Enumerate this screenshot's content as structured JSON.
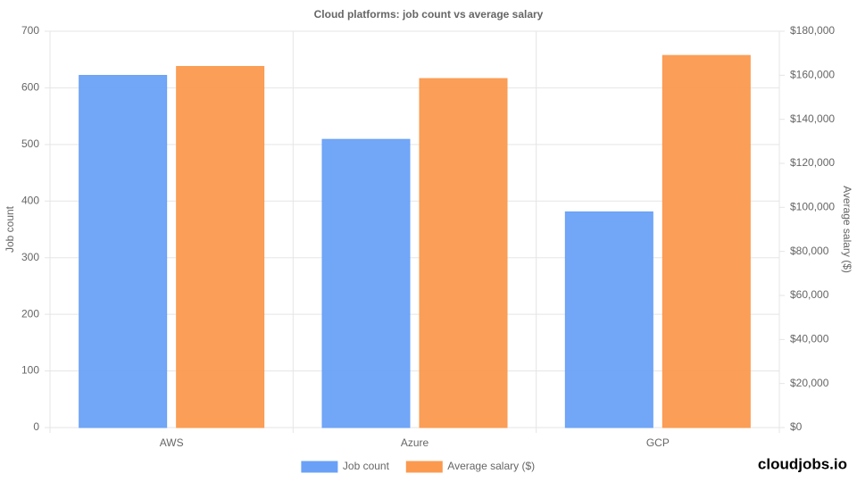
{
  "chart_data": {
    "type": "bar",
    "title": "Cloud platforms: job count vs average salary",
    "categories": [
      "AWS",
      "Azure",
      "GCP"
    ],
    "series": [
      {
        "name": "Job count",
        "color": "#6aa1f7",
        "values": [
          622,
          509,
          381
        ]
      },
      {
        "name": "Average salary ($)",
        "color": "#fb9a4f",
        "axis": "y2",
        "values": [
          164000,
          158500,
          169000
        ]
      }
    ],
    "y_label": "Job count",
    "y2_label": "Average salary ($)",
    "ylim": [
      0,
      700
    ],
    "yticks": [
      0,
      100,
      200,
      300,
      400,
      500,
      600,
      700
    ],
    "y2lim": [
      0,
      180000
    ],
    "y2ticks": [
      {
        "value": 0,
        "label": "$0"
      },
      {
        "value": 20000,
        "label": "$20,000"
      },
      {
        "value": 40000,
        "label": "$40,000"
      },
      {
        "value": 60000,
        "label": "$60,000"
      },
      {
        "value": 80000,
        "label": "$80,000"
      },
      {
        "value": 100000,
        "label": "$100,000"
      },
      {
        "value": 120000,
        "label": "$120,000"
      },
      {
        "value": 140000,
        "label": "$140,000"
      },
      {
        "value": 160000,
        "label": "$160,000"
      },
      {
        "value": 180000,
        "label": "$180,000"
      }
    ],
    "grid": true,
    "legend": "bottom",
    "watermark": "cloudjobs.io"
  }
}
